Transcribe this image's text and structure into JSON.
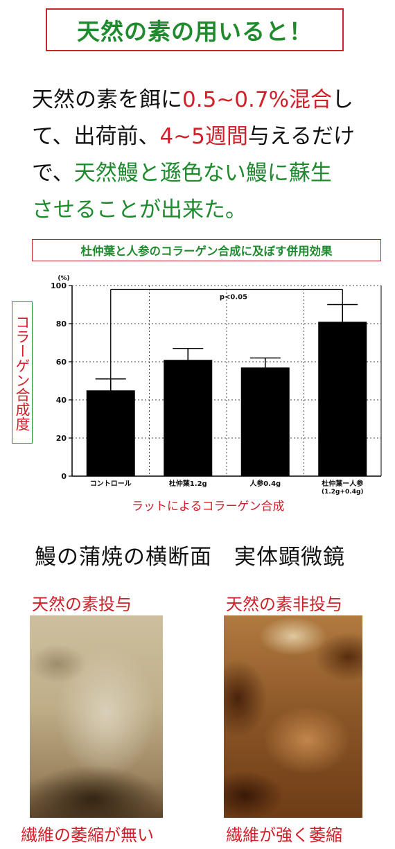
{
  "title": "天然の素の用いると！",
  "intro": {
    "p1": "天然の素を餌に",
    "p2": "0.5~0.7%混合",
    "p3": "し",
    "p4": "て、出荷前、",
    "p5": "4~5週間",
    "p6": "与えるだけ",
    "p7": "で、",
    "p8": "天然鰻と遜色ない鰻に蘇生",
    "p9": "させることが出来た。"
  },
  "chart_title": "杜仲葉と人参のコラーゲン合成に及ぼす併用効果",
  "chart_ylabel": "コラーゲン合成度",
  "chart_caption": "ラットによるコラーゲン合成",
  "section_title": "鰻の蒲焼の横断面　実体顕微鏡",
  "images": {
    "left_label": "天然の素投与",
    "right_label": "天然の素非投与",
    "left_caption": "繊維の萎縮が無い",
    "right_caption": "繊維が強く萎縮"
  },
  "colors": {
    "red": "#d0202a",
    "green": "#1f8a2e",
    "bar": "#000000"
  },
  "chart_data": {
    "type": "bar",
    "unit_label": "(%)",
    "categories": [
      "コントロール",
      "杜仲葉1.2g",
      "人参0.4g",
      "杜仲葉ー人参"
    ],
    "category_sublabels": [
      "",
      "",
      "",
      "(1.2g+0.4g)"
    ],
    "values": [
      45,
      61,
      57,
      81
    ],
    "errors": [
      6,
      6,
      5,
      9
    ],
    "yticks": [
      0,
      20,
      40,
      60,
      80,
      100
    ],
    "ylim": [
      0,
      100
    ],
    "grid": true,
    "annotation": "p<0.05"
  }
}
